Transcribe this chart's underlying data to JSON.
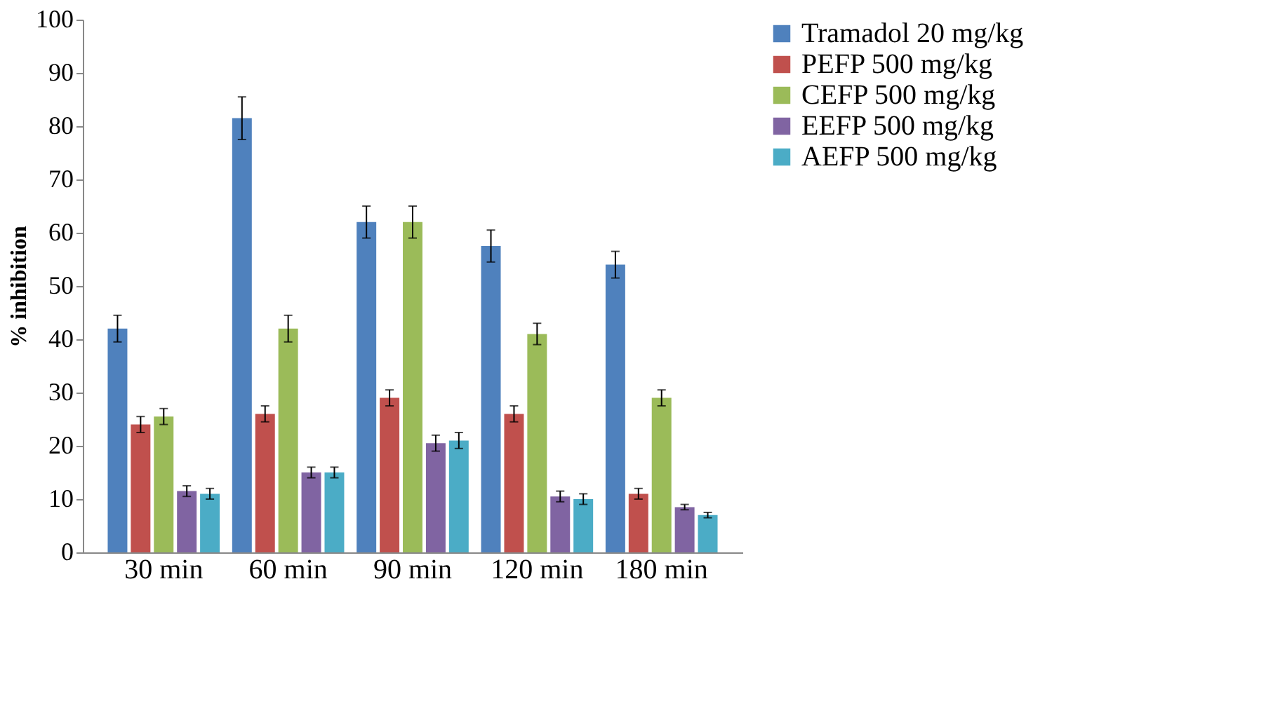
{
  "chart_data": {
    "type": "bar",
    "ylabel": "% inhibition",
    "categories": [
      "30 min",
      "60 min",
      "90 min",
      "120 min",
      "180 min"
    ],
    "series": [
      {
        "name": "Tramadol 20 mg/kg",
        "color": "#4f81bd",
        "values": [
          42,
          81.5,
          62,
          57.5,
          54
        ],
        "errors": [
          2.5,
          4,
          3,
          3,
          2.5
        ]
      },
      {
        "name": "PEFP 500 mg/kg",
        "color": "#c0504d",
        "values": [
          24,
          26,
          29,
          26,
          11
        ],
        "errors": [
          1.5,
          1.5,
          1.5,
          1.5,
          1
        ]
      },
      {
        "name": "CEFP 500 mg/kg",
        "color": "#9bbb59",
        "values": [
          25.5,
          42,
          62,
          41,
          29
        ],
        "errors": [
          1.5,
          2.5,
          3,
          2,
          1.5
        ]
      },
      {
        "name": "EEFP 500 mg/kg",
        "color": "#8064a2",
        "values": [
          11.5,
          15,
          20.5,
          10.5,
          8.5
        ],
        "errors": [
          1,
          1,
          1.5,
          1,
          0.5
        ]
      },
      {
        "name": "AEFP 500 mg/kg",
        "color": "#4bacc6",
        "values": [
          11,
          15,
          21,
          10,
          7
        ],
        "errors": [
          1,
          1,
          1.5,
          1,
          0.5
        ]
      }
    ],
    "ylim": [
      0,
      100
    ],
    "yticks": [
      0,
      10,
      20,
      30,
      40,
      50,
      60,
      70,
      80,
      90,
      100
    ],
    "grid": false,
    "legend": "right"
  }
}
